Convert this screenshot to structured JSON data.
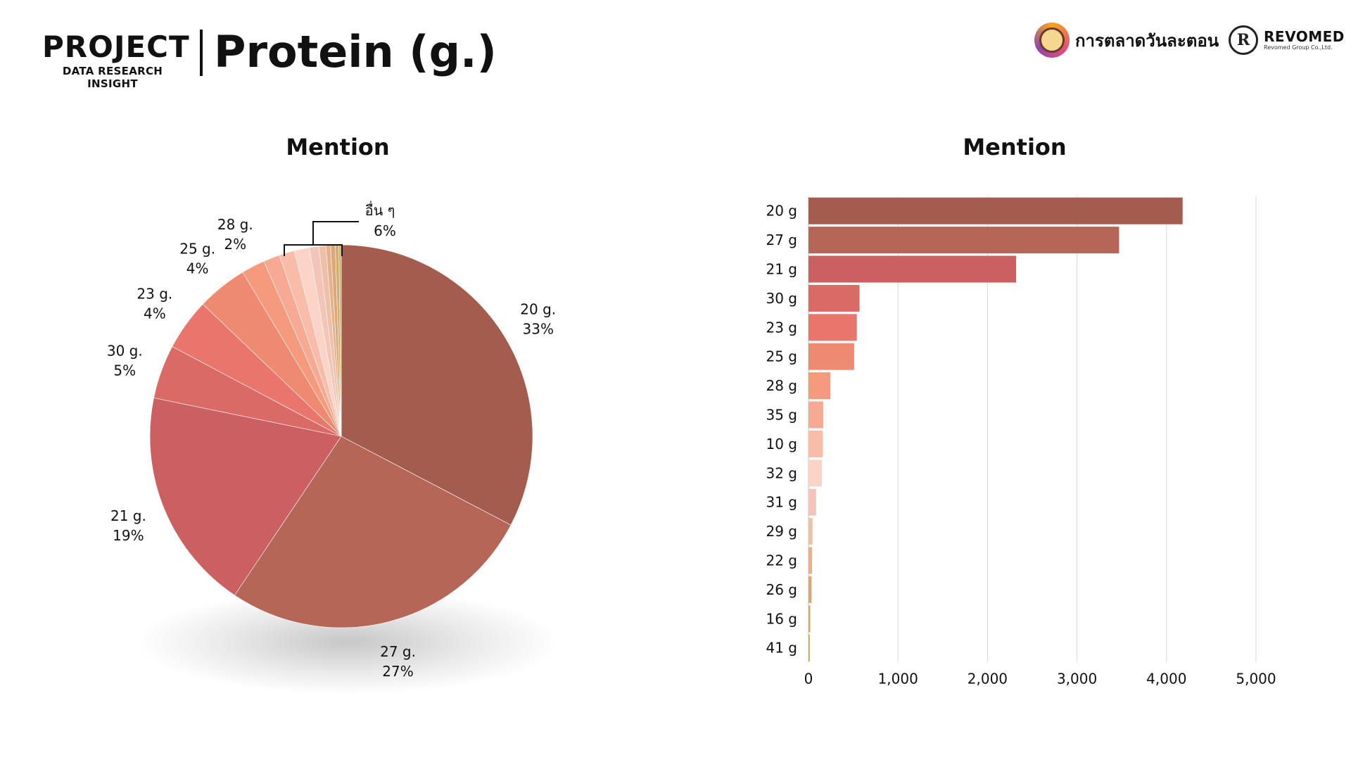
{
  "header": {
    "brand_main": "PROJECT",
    "brand_sub": "DATA RESEARCH INSIGHT",
    "title": "Protein (g.)",
    "partner1_name": "การตลาดวันละตอน",
    "partner2_logo_letter": "R",
    "partner2_name": "REVOMED",
    "partner2_sub": "Revomed Group Co.,Ltd."
  },
  "chart_data": [
    {
      "type": "pie",
      "title": "Mention",
      "slices": [
        {
          "label": "20 g.",
          "pct_label": "33%",
          "value": 33,
          "color": "#a45c4e"
        },
        {
          "label": "27 g.",
          "pct_label": "27%",
          "value": 27,
          "color": "#b66657"
        },
        {
          "label": "21 g.",
          "pct_label": "19%",
          "value": 19,
          "color": "#cb5f62"
        },
        {
          "label": "30 g.",
          "pct_label": "5%",
          "value": 4.6,
          "color": "#d96a66"
        },
        {
          "label": "23 g.",
          "pct_label": "4%",
          "value": 4.4,
          "color": "#e8766d"
        },
        {
          "label": "25 g.",
          "pct_label": "4%",
          "value": 4.3,
          "color": "#ef8a72"
        },
        {
          "label": "28 g.",
          "pct_label": "2%",
          "value": 2.0,
          "color": "#f69a7d"
        },
        {
          "label": "",
          "pct_label": "",
          "value": 1.4,
          "color": "#f7aa93"
        },
        {
          "label": "",
          "pct_label": "",
          "value": 1.3,
          "color": "#f9bca8"
        },
        {
          "label": "",
          "pct_label": "",
          "value": 1.3,
          "color": "#fbd3c7"
        },
        {
          "label": "",
          "pct_label": "",
          "value": 0.8,
          "color": "#f5c4b8"
        },
        {
          "label": "",
          "pct_label": "",
          "value": 0.6,
          "color": "#edc0a8"
        },
        {
          "label": "",
          "pct_label": "",
          "value": 0.4,
          "color": "#e6b08c"
        },
        {
          "label": "",
          "pct_label": "",
          "value": 0.4,
          "color": "#d9a978"
        },
        {
          "label": "",
          "pct_label": "",
          "value": 0.3,
          "color": "#d0ad6a"
        },
        {
          "label": "",
          "pct_label": "",
          "value": 0.2,
          "color": "#c9b068"
        }
      ],
      "others_label": "อื่น ๆ",
      "others_pct_label": "6%"
    },
    {
      "type": "bar",
      "orientation": "horizontal",
      "title": "Mention",
      "categories": [
        "20 g",
        "27 g",
        "21 g",
        "30 g",
        "23 g",
        "25 g",
        "28 g",
        "35 g",
        "10 g",
        "32 g",
        "31 g",
        "29 g",
        "22 g",
        "26 g",
        "16 g",
        "41 g"
      ],
      "values": [
        4180,
        3470,
        2320,
        570,
        540,
        510,
        245,
        165,
        160,
        150,
        85,
        45,
        40,
        35,
        20,
        15
      ],
      "colors": [
        "#a45c4e",
        "#b66657",
        "#cb5f62",
        "#d96a66",
        "#e8766d",
        "#ef8a72",
        "#f69a7d",
        "#f7aa93",
        "#f9bca8",
        "#fbd3c7",
        "#f5c4b8",
        "#edc0a8",
        "#e6b08c",
        "#d9a978",
        "#d0ad6a",
        "#c9b068"
      ],
      "xlim": [
        0,
        5000
      ],
      "xticks": [
        0,
        1000,
        2000,
        3000,
        4000,
        5000
      ],
      "xtick_labels": [
        "0",
        "1,000",
        "2,000",
        "3,000",
        "4,000",
        "5,000"
      ],
      "grid": "vertical"
    }
  ]
}
